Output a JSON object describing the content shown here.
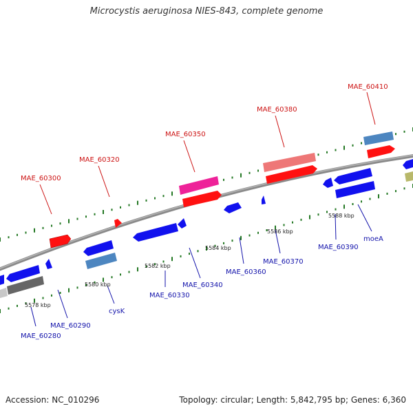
{
  "title": "Microcystis aeruginosa NIES-843, complete genome",
  "footer": {
    "accession": "Accession: NC_010296",
    "stats": "Topology: circular; Length: 5,842,795 bp; Genes: 6,360"
  },
  "colors": {
    "backbone": "#8a8a8a",
    "red": "#ff1111",
    "blue": "#1111ee",
    "steel": "#4d86c0",
    "pink": "#ee2299",
    "salmon": "#ee7777",
    "gray": "#666666",
    "olive": "#b8b86a",
    "tick": "#227722",
    "label_red": "#cc1111",
    "label_blue": "#1111aa"
  },
  "kbp_labels": [
    "5578 kbp",
    "5580 kbp",
    "5582 kbp",
    "5584 kbp",
    "5586 kbp",
    "5588 kbp"
  ],
  "gene_labels_top": [
    "MAE_60300",
    "MAE_60320",
    "MAE_60350",
    "MAE_60380",
    "MAE_60410"
  ],
  "gene_labels_bottom": [
    "MAE_60280",
    "MAE_60290",
    "cysK",
    "MAE_60330",
    "MAE_60340",
    "MAE_60360",
    "MAE_60370",
    "MAE_60390",
    "moeA"
  ]
}
